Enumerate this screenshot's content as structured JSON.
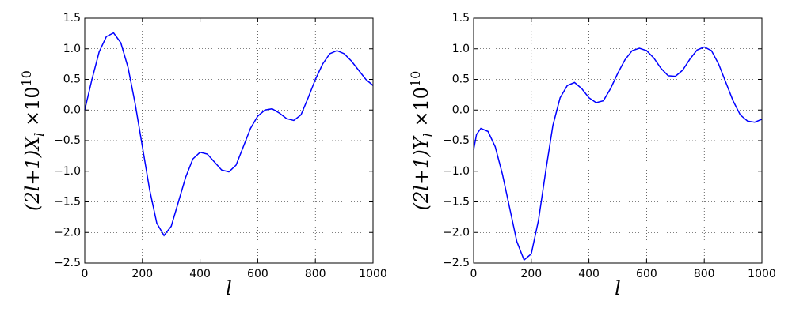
{
  "chart_data": [
    {
      "type": "line",
      "xlabel": "l",
      "ylabel": {
        "text": "(2l+1)X",
        "subscript": "l",
        "suffix": " ×10",
        "superscript": "10"
      },
      "xlim": [
        0,
        1000
      ],
      "xticks": [
        0,
        200,
        400,
        600,
        800,
        1000
      ],
      "ylim": [
        -2.5,
        1.5
      ],
      "yticks": [
        {
          "value": -2.5,
          "label": "−2.5"
        },
        {
          "value": -2.0,
          "label": "−2.0"
        },
        {
          "value": -1.5,
          "label": "−1.5"
        },
        {
          "value": -1.0,
          "label": "−1.0"
        },
        {
          "value": -0.5,
          "label": "−0.5"
        },
        {
          "value": 0.0,
          "label": "0.0"
        },
        {
          "value": 0.5,
          "label": "0.5"
        },
        {
          "value": 1.0,
          "label": "1.0"
        },
        {
          "value": 1.5,
          "label": "1.5"
        }
      ],
      "grid": true,
      "series": [
        {
          "color": "#0000ff",
          "x": [
            0,
            25,
            50,
            75,
            100,
            125,
            150,
            175,
            200,
            225,
            250,
            275,
            300,
            325,
            350,
            375,
            400,
            425,
            450,
            475,
            500,
            525,
            550,
            575,
            600,
            625,
            650,
            675,
            700,
            725,
            750,
            775,
            800,
            825,
            850,
            875,
            900,
            925,
            950,
            975,
            1000
          ],
          "values": [
            0.0,
            0.5,
            0.95,
            1.2,
            1.26,
            1.1,
            0.7,
            0.1,
            -0.6,
            -1.3,
            -1.85,
            -2.05,
            -1.9,
            -1.5,
            -1.1,
            -0.8,
            -0.69,
            -0.72,
            -0.85,
            -0.98,
            -1.01,
            -0.9,
            -0.6,
            -0.3,
            -0.1,
            0.0,
            0.02,
            -0.05,
            -0.14,
            -0.17,
            -0.08,
            0.2,
            0.5,
            0.75,
            0.92,
            0.97,
            0.92,
            0.8,
            0.65,
            0.5,
            0.4
          ]
        }
      ]
    },
    {
      "type": "line",
      "xlabel": "l",
      "ylabel": {
        "text": "(2l+1)Y",
        "subscript": "l",
        "suffix": " ×10",
        "superscript": "10"
      },
      "xlim": [
        0,
        1000
      ],
      "xticks": [
        0,
        200,
        400,
        600,
        800,
        1000
      ],
      "ylim": [
        -2.5,
        1.5
      ],
      "yticks": [
        {
          "value": -2.5,
          "label": "−2.5"
        },
        {
          "value": -2.0,
          "label": "−2.0"
        },
        {
          "value": -1.5,
          "label": "−1.5"
        },
        {
          "value": -1.0,
          "label": "−1.0"
        },
        {
          "value": -0.5,
          "label": "−0.5"
        },
        {
          "value": 0.0,
          "label": "0.0"
        },
        {
          "value": 0.5,
          "label": "0.5"
        },
        {
          "value": 1.0,
          "label": "1.0"
        },
        {
          "value": 1.5,
          "label": "1.5"
        }
      ],
      "grid": true,
      "series": [
        {
          "color": "#0000ff",
          "x": [
            0,
            10,
            25,
            50,
            75,
            100,
            125,
            150,
            175,
            200,
            225,
            250,
            275,
            300,
            325,
            350,
            375,
            400,
            425,
            450,
            475,
            500,
            525,
            550,
            575,
            600,
            625,
            650,
            675,
            700,
            725,
            750,
            775,
            800,
            825,
            850,
            875,
            900,
            925,
            950,
            975,
            1000
          ],
          "values": [
            -0.65,
            -0.4,
            -0.3,
            -0.35,
            -0.6,
            -1.05,
            -1.6,
            -2.15,
            -2.45,
            -2.35,
            -1.8,
            -1.0,
            -0.25,
            0.2,
            0.4,
            0.45,
            0.35,
            0.2,
            0.12,
            0.15,
            0.35,
            0.6,
            0.82,
            0.97,
            1.01,
            0.97,
            0.85,
            0.68,
            0.56,
            0.55,
            0.65,
            0.83,
            0.98,
            1.03,
            0.97,
            0.75,
            0.45,
            0.15,
            -0.08,
            -0.18,
            -0.2,
            -0.15
          ]
        }
      ]
    }
  ]
}
